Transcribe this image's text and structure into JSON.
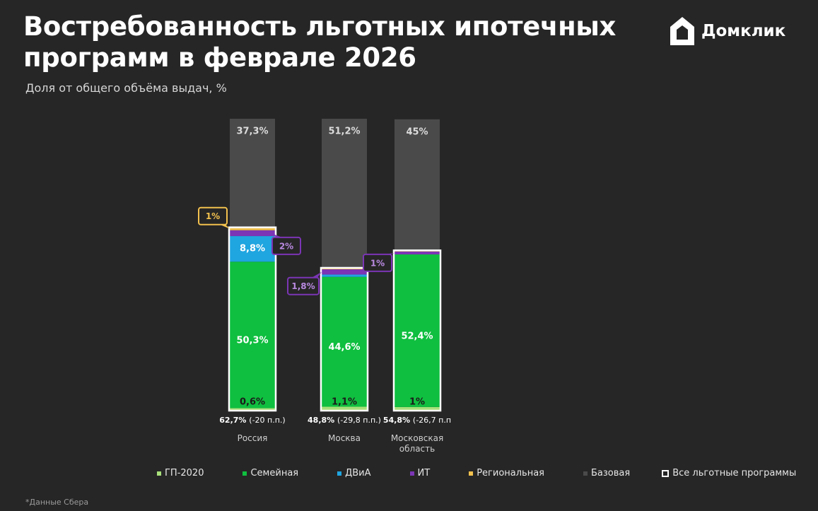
{
  "title_lines": [
    "Востребованность льготных ипотечных",
    "программ в феврале 2026"
  ],
  "brand": {
    "name": "Домклик",
    "logo_icon": "domclick-house-icon"
  },
  "footnote": "*Данные Сбера",
  "chart_data": {
    "type": "bar",
    "stacked": true,
    "subtitle": "Доля от общего объёма выдач, %",
    "ylim": [
      0,
      100
    ],
    "categories": [
      {
        "label": "Россия",
        "label_lines": [
          "Россия"
        ],
        "total_value": 62.7,
        "total_text": "62,7%",
        "change_text": "(-20 п.п.)"
      },
      {
        "label": "Москва",
        "label_lines": [
          "Москва"
        ],
        "total_value": 48.8,
        "total_text": "48,8%",
        "change_text": "(-29,8 п.п.)"
      },
      {
        "label": "Московская область",
        "label_lines": [
          "Московская",
          "область"
        ],
        "total_value": 54.8,
        "total_text": "54,8%",
        "change_text": "(-26,7 п.п"
      }
    ],
    "series": [
      {
        "name": "ГП-2020",
        "color": "#a8e07a",
        "values": [
          0.6,
          1.1,
          1.0
        ],
        "labels": [
          "0,6%",
          "1,1%",
          "1%"
        ]
      },
      {
        "name": "Семейная",
        "color": "#0fbf3f",
        "values": [
          50.3,
          44.6,
          52.4
        ],
        "labels": [
          "50,3%",
          "44,6%",
          "52,4%"
        ]
      },
      {
        "name": "ДВиА",
        "color": "#1fa5e0",
        "values": [
          8.8,
          0.8,
          0.0
        ],
        "labels": [
          "8,8%",
          "",
          ""
        ]
      },
      {
        "name": "ИТ",
        "color": "#7b35b5",
        "values": [
          2.0,
          1.8,
          1.0
        ],
        "labels": [
          "2%",
          "1,8%",
          "1%"
        ]
      },
      {
        "name": "Региональная",
        "color": "#f2c14e",
        "values": [
          1.0,
          0.5,
          0.4
        ],
        "labels": [
          "1%",
          "",
          ""
        ]
      },
      {
        "name": "Базовая",
        "color": "#4a4a4a",
        "values": [
          37.3,
          51.2,
          45.0
        ],
        "labels": [
          "37,3%",
          "51,2%",
          "45%"
        ]
      }
    ],
    "legend_outline_entry": "Все льготные программы",
    "legend_position": "bottom"
  }
}
